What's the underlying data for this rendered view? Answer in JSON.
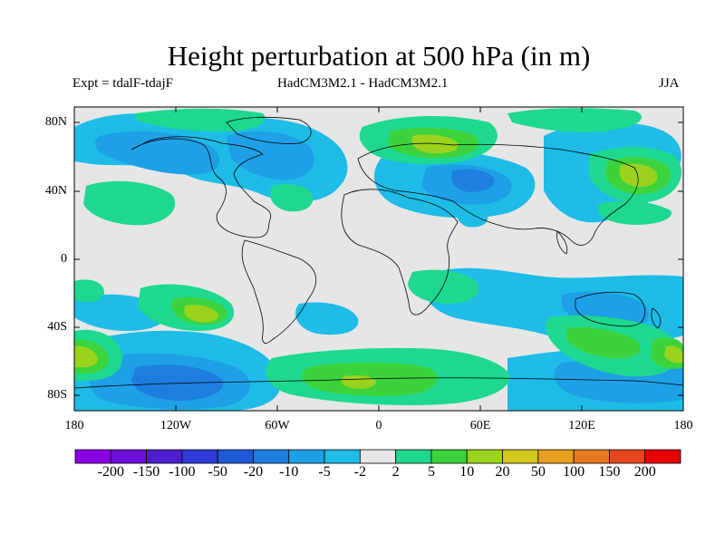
{
  "header": {
    "title": "Height perturbation at 500 hPa (in m)",
    "left": "Expt = tdalF-tdajF",
    "center": "HadCM3M2.1 - HadCM3M2.1",
    "right": "JJA"
  },
  "axes": {
    "y_ticks": [
      "80N",
      "40N",
      "0",
      "40S",
      "80S"
    ],
    "x_ticks": [
      "180",
      "120W",
      "60W",
      "0",
      "60E",
      "120E",
      "180"
    ]
  },
  "colorbar": {
    "labels": [
      "-200",
      "-150",
      "-100",
      "-50",
      "-20",
      "-10",
      "-5",
      "-2",
      "2",
      "5",
      "10",
      "20",
      "50",
      "100",
      "150",
      "200"
    ],
    "colors": [
      "#8a00e6",
      "#6a10d8",
      "#4c1ed0",
      "#2e3ad8",
      "#1e5ad8",
      "#1e7ee0",
      "#1ea0e6",
      "#1ebce6",
      "#e6e6e6",
      "#1ed890",
      "#3cd23c",
      "#9ad21e",
      "#d2c81e",
      "#e6a01e",
      "#e6781e",
      "#e6461e",
      "#e60000"
    ]
  },
  "map": {
    "background": "#e6e6e6",
    "colors": {
      "neg_weak": "#1ebce6",
      "neg_mid": "#1ea0e6",
      "neg_strong": "#1e7ee0",
      "pos_weak": "#1ed890",
      "pos_mid": "#3cd23c",
      "pos_strong": "#9ad21e",
      "pos_peak": "#d2c81e"
    }
  }
}
